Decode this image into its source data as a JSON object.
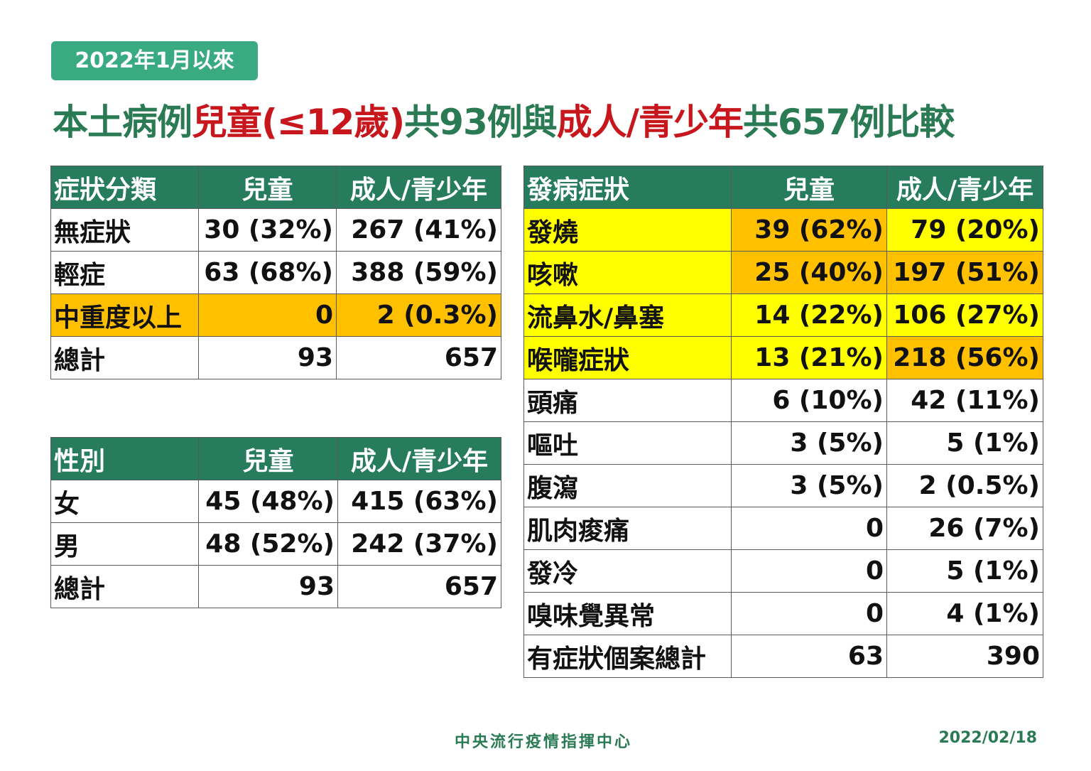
{
  "badge": "2022年1月以來",
  "title": {
    "p1": "本土病例",
    "p2": "兒童(≤12歲)",
    "p3": "共93例與",
    "p4": "成人/青少年",
    "p5": "共657例比較"
  },
  "colors": {
    "header_green": "#267c5c",
    "badge_green": "#3aaa82",
    "title_green": "#2a7a54",
    "title_red": "#c8161d",
    "highlight_orange": "#ffc000",
    "highlight_yellow": "#ffff00"
  },
  "severity_table": {
    "headers": [
      "症狀分類",
      "兒童",
      "成人/青少年"
    ],
    "rows": [
      [
        "無症狀",
        "30 (32%)",
        "267 (41%)"
      ],
      [
        "輕症",
        "63 (68%)",
        "388 (59%)"
      ],
      [
        "中重度以上",
        "0",
        "2 (0.3%)"
      ],
      [
        "總計",
        "93",
        "657"
      ]
    ]
  },
  "gender_table": {
    "headers": [
      "性別",
      "兒童",
      "成人/青少年"
    ],
    "rows": [
      [
        "女",
        "45 (48%)",
        "415 (63%)"
      ],
      [
        "男",
        "48 (52%)",
        "242 (37%)"
      ],
      [
        "總計",
        "93",
        "657"
      ]
    ]
  },
  "symptom_table": {
    "headers": [
      "發病症狀",
      "兒童",
      "成人/青少年"
    ],
    "rows": [
      [
        "發燒",
        "39 (62%)",
        "79 (20%)"
      ],
      [
        "咳嗽",
        "25 (40%)",
        "197 (51%)"
      ],
      [
        "流鼻水/鼻塞",
        "14 (22%)",
        "106 (27%)"
      ],
      [
        "喉嚨症狀",
        "13 (21%)",
        "218 (56%)"
      ],
      [
        "頭痛",
        "6 (10%)",
        "42 (11%)"
      ],
      [
        "嘔吐",
        "3 (5%)",
        "5 (1%)"
      ],
      [
        "腹瀉",
        "3 (5%)",
        "2 (0.5%)"
      ],
      [
        "肌肉痠痛",
        "0",
        "26 (7%)"
      ],
      [
        "發冷",
        "0",
        "5 (1%)"
      ],
      [
        "嗅味覺異常",
        "0",
        "4 (1%)"
      ],
      [
        "有症狀個案總計",
        "63",
        "390"
      ]
    ]
  },
  "footer": {
    "org": "中央流行疫情指揮中心",
    "date": "2022/02/18"
  }
}
